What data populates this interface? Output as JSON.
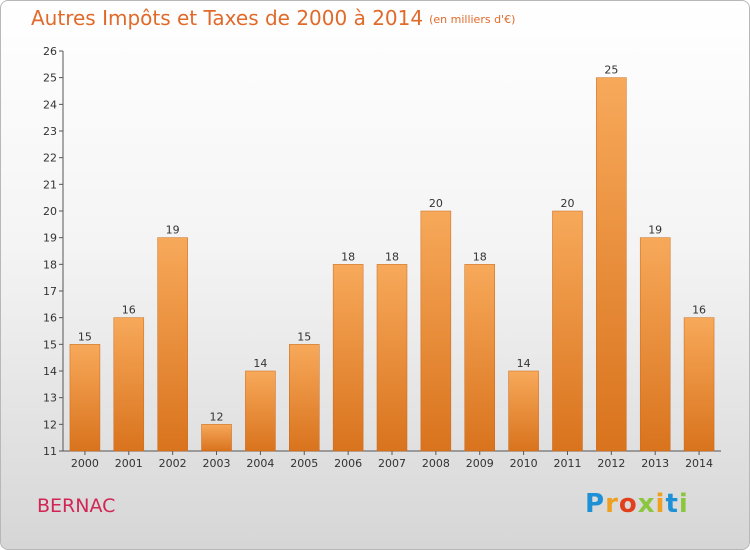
{
  "header": {
    "title": "Autres Impôts et Taxes de 2000 à 2014",
    "subtitle": "(en milliers d'€)"
  },
  "footer": {
    "commune": "BERNAC",
    "logo_text": "Proxiti",
    "logo_letters": [
      {
        "char": "P",
        "color": "#1e90d6"
      },
      {
        "char": "r",
        "color": "#f0a020"
      },
      {
        "char": "o",
        "color": "#e0401e"
      },
      {
        "char": "x",
        "color": "#8cc63f"
      },
      {
        "char": "i",
        "color": "#f0a020"
      },
      {
        "char": "t",
        "color": "#1e90d6"
      },
      {
        "char": "i",
        "color": "#8cc63f"
      }
    ]
  },
  "chart_data": {
    "type": "bar",
    "title": "Autres Impôts et Taxes de 2000 à 2014",
    "subtitle": "(en milliers d'€)",
    "categories": [
      "2000",
      "2001",
      "2002",
      "2003",
      "2004",
      "2005",
      "2006",
      "2007",
      "2008",
      "2009",
      "2010",
      "2011",
      "2012",
      "2013",
      "2014"
    ],
    "values": [
      15,
      16,
      19,
      12,
      14,
      15,
      18,
      18,
      20,
      18,
      14,
      20,
      25,
      19,
      16
    ],
    "ylim": [
      11,
      26
    ],
    "yticks": [
      11,
      12,
      13,
      14,
      15,
      16,
      17,
      18,
      19,
      20,
      21,
      22,
      23,
      24,
      25,
      26
    ],
    "xlabel": "",
    "ylabel": "",
    "grid": false,
    "colors": {
      "bar_light": "#f7a95a",
      "bar_dark": "#d9731d",
      "title": "#e06a2a",
      "commune": "#d12655"
    }
  }
}
